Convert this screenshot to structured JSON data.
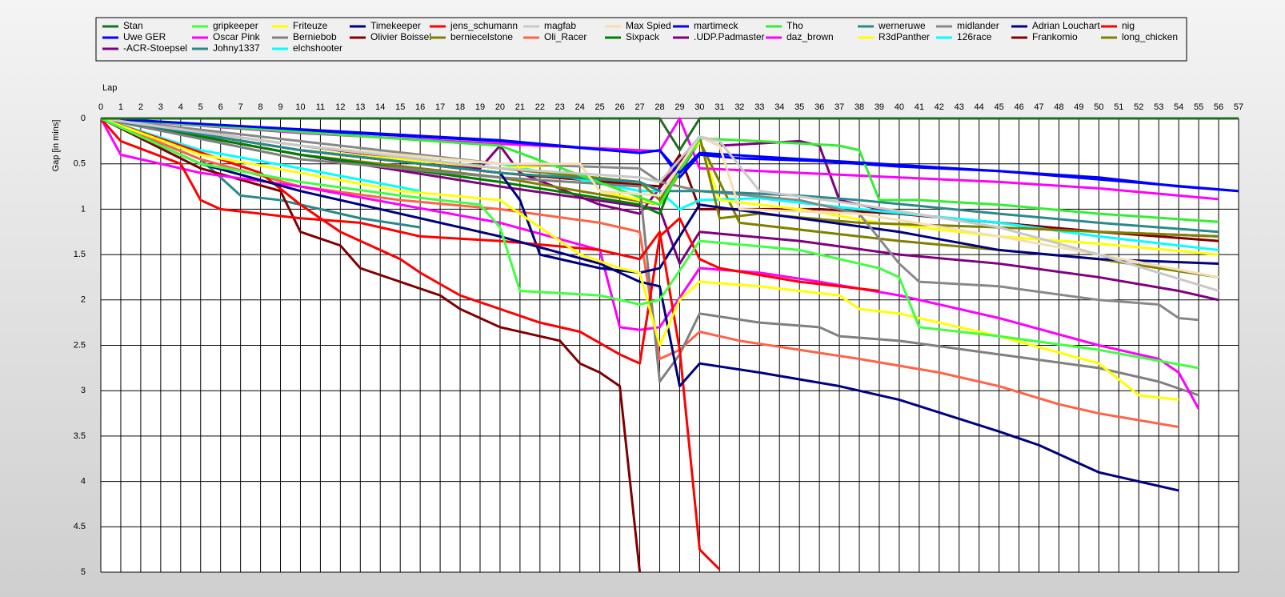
{
  "chart_data": {
    "type": "line",
    "x_label": "Lap",
    "y_label": "Gap [in mins]",
    "invert_y": true,
    "grid": true,
    "xlim": [
      0,
      57
    ],
    "xticks": [
      0,
      1,
      2,
      3,
      4,
      5,
      6,
      7,
      8,
      9,
      10,
      11,
      12,
      13,
      14,
      15,
      16,
      17,
      18,
      19,
      20,
      21,
      22,
      23,
      24,
      25,
      26,
      27,
      28,
      29,
      30,
      31,
      32,
      33,
      34,
      35,
      36,
      37,
      38,
      39,
      40,
      41,
      42,
      43,
      44,
      45,
      46,
      47,
      48,
      49,
      50,
      51,
      52,
      53,
      54,
      55,
      56,
      57
    ],
    "ylim": [
      0,
      5
    ],
    "yticks": [
      0,
      0.5,
      1,
      1.5,
      2,
      2.5,
      3,
      3.5,
      4,
      4.5,
      5
    ],
    "series": [
      {
        "name": "Stan",
        "color": "#1e6e1e",
        "x": [
          0,
          28,
          29,
          30,
          57
        ],
        "values": [
          0,
          0,
          0.35,
          0,
          0
        ]
      },
      {
        "name": "gripkeeper",
        "color": "#40ff40",
        "x": [
          0,
          5,
          10,
          15,
          19,
          20,
          21,
          25,
          27,
          28,
          30,
          35,
          39,
          40,
          41,
          45,
          50,
          55
        ],
        "values": [
          0,
          0.5,
          0.7,
          0.85,
          0.95,
          1.2,
          1.9,
          1.95,
          2.05,
          2.0,
          1.35,
          1.45,
          1.65,
          1.75,
          2.3,
          2.4,
          2.55,
          2.75
        ]
      },
      {
        "name": "Friteuze",
        "color": "#ffff00",
        "x": [
          0,
          5,
          10,
          15,
          20,
          24,
          26,
          27,
          28,
          29,
          30,
          33,
          37,
          38,
          40,
          45,
          50,
          52,
          54
        ],
        "values": [
          0,
          0.4,
          0.6,
          0.8,
          0.9,
          1.5,
          1.65,
          1.7,
          2.5,
          2.0,
          1.8,
          1.85,
          1.95,
          2.1,
          2.15,
          2.4,
          2.7,
          3.05,
          3.1
        ]
      },
      {
        "name": "Timekeeper",
        "color": "#000080",
        "x": [
          0,
          5,
          10,
          15,
          20,
          25,
          27,
          28,
          29,
          30,
          33,
          37,
          40,
          45,
          47,
          50,
          52,
          54
        ],
        "values": [
          0,
          0.5,
          0.8,
          1.05,
          1.3,
          1.6,
          1.8,
          1.85,
          2.95,
          2.7,
          2.8,
          2.95,
          3.1,
          3.45,
          3.6,
          3.9,
          4.0,
          4.1
        ]
      },
      {
        "name": "jens_schumann",
        "color": "#ff0000",
        "x": [
          0,
          1,
          4,
          5,
          6,
          8,
          10,
          13,
          15,
          16,
          20,
          25,
          27,
          28,
          29,
          30,
          31
        ],
        "values": [
          0,
          0.25,
          0.5,
          0.9,
          1.0,
          1.05,
          1.1,
          1.15,
          1.25,
          1.3,
          1.35,
          1.45,
          1.55,
          1.25,
          2.55,
          4.75,
          4.97
        ]
      },
      {
        "name": "magfab",
        "color": "#c8c8c8",
        "x": [
          0,
          10,
          20,
          27,
          28,
          30,
          31,
          33,
          38,
          45,
          50,
          56
        ],
        "values": [
          0,
          0.3,
          0.55,
          0.65,
          0.7,
          0.2,
          0.25,
          0.8,
          0.95,
          1.2,
          1.5,
          1.9
        ]
      },
      {
        "name": "Max Spied",
        "color": "#f5deb3",
        "x": [
          0,
          10,
          20,
          24,
          25,
          28,
          30,
          31,
          32,
          38,
          45,
          50,
          56
        ],
        "values": [
          0,
          0.3,
          0.5,
          0.5,
          0.8,
          0.85,
          0.2,
          0.3,
          1.0,
          1.05,
          1.3,
          1.5,
          1.75
        ]
      },
      {
        "name": "martimeck",
        "color": "#0000ff",
        "x": [
          0,
          10,
          20,
          27,
          28,
          29,
          30,
          36,
          45,
          57
        ],
        "values": [
          0,
          0.12,
          0.24,
          0.38,
          0.35,
          0.6,
          0.38,
          0.46,
          0.58,
          0.8
        ]
      },
      {
        "name": "Tho",
        "color": "#33ee33",
        "x": [
          0,
          10,
          20,
          28,
          30,
          33,
          37,
          38,
          39,
          41,
          45,
          50,
          56
        ],
        "values": [
          0,
          0.15,
          0.3,
          0.95,
          0.22,
          0.25,
          0.3,
          0.35,
          0.9,
          0.9,
          0.95,
          1.05,
          1.14
        ]
      },
      {
        "name": "werneruwe",
        "color": "#2a8a8a",
        "x": [
          0,
          10,
          20,
          27,
          28,
          30,
          35,
          38,
          45,
          50,
          56
        ],
        "values": [
          0,
          0.35,
          0.6,
          0.7,
          0.8,
          0.8,
          0.85,
          0.9,
          1.05,
          1.15,
          1.25
        ]
      },
      {
        "name": "midlander",
        "color": "#888888",
        "x": [
          0,
          10,
          20,
          27,
          28,
          30,
          35,
          38,
          40,
          41,
          45,
          50,
          53,
          54,
          55
        ],
        "values": [
          0,
          0.25,
          0.5,
          0.55,
          0.7,
          0.8,
          0.9,
          1.05,
          1.6,
          1.8,
          1.85,
          2.0,
          2.05,
          2.2,
          2.22
        ]
      },
      {
        "name": "Adrian Louchart",
        "color": "#000080",
        "x": [
          0,
          10,
          20,
          21,
          22,
          23,
          25,
          27,
          28,
          30,
          35,
          40,
          45,
          50,
          56
        ],
        "values": [
          0,
          0.35,
          0.6,
          0.9,
          1.5,
          1.55,
          1.65,
          1.7,
          1.65,
          0.95,
          1.1,
          1.25,
          1.45,
          1.55,
          1.6
        ]
      },
      {
        "name": "nig",
        "color": "#ff0000",
        "x": [
          0,
          4,
          8,
          10,
          12,
          15,
          16,
          18,
          20,
          22,
          24,
          26,
          27,
          28,
          29,
          30,
          31,
          35,
          39
        ],
        "values": [
          0,
          0.3,
          0.6,
          0.95,
          1.25,
          1.55,
          1.7,
          1.95,
          2.1,
          2.25,
          2.35,
          2.6,
          2.7,
          1.3,
          1.1,
          1.55,
          1.65,
          1.8,
          1.9
        ]
      },
      {
        "name": "Uwe GER",
        "color": "#0000ff",
        "x": [
          0,
          10,
          20,
          27,
          28,
          29,
          30,
          32,
          36,
          40,
          45,
          50,
          54,
          57
        ],
        "values": [
          0,
          0.13,
          0.25,
          0.38,
          0.35,
          0.65,
          0.4,
          0.44,
          0.47,
          0.53,
          0.58,
          0.65,
          0.75,
          0.8
        ]
      },
      {
        "name": "Oscar Pink",
        "color": "#ff00ff",
        "x": [
          0,
          1,
          5,
          10,
          15,
          20,
          25,
          26,
          27,
          28,
          30,
          33,
          36,
          40,
          45,
          50,
          53,
          54,
          55
        ],
        "values": [
          0,
          0.4,
          0.6,
          0.75,
          0.95,
          1.15,
          1.45,
          2.3,
          2.33,
          2.3,
          1.65,
          1.7,
          1.8,
          1.95,
          2.2,
          2.5,
          2.65,
          2.8,
          3.2
        ]
      },
      {
        "name": "Berniebob",
        "color": "#808080",
        "x": [
          0,
          10,
          20,
          27,
          28,
          29,
          30,
          33,
          36,
          37,
          40,
          45,
          50,
          53,
          55
        ],
        "values": [
          0,
          0.45,
          0.65,
          0.75,
          2.9,
          2.6,
          2.15,
          2.25,
          2.3,
          2.4,
          2.45,
          2.6,
          2.75,
          2.9,
          3.05
        ]
      },
      {
        "name": "Olivier Boissel",
        "color": "#800000",
        "x": [
          0,
          5,
          9,
          10,
          12,
          13,
          15,
          17,
          18,
          20,
          23,
          24,
          25,
          26,
          27
        ],
        "values": [
          0,
          0.55,
          0.8,
          1.25,
          1.4,
          1.65,
          1.8,
          1.95,
          2.1,
          2.3,
          2.45,
          2.7,
          2.8,
          2.95,
          5
        ]
      },
      {
        "name": "berniecelstone",
        "color": "#808000",
        "x": [
          0,
          10,
          20,
          27,
          28,
          30,
          31,
          33,
          38,
          45,
          50,
          56
        ],
        "values": [
          0,
          0.3,
          0.55,
          0.7,
          0.9,
          0.2,
          1.1,
          1.05,
          1.15,
          1.2,
          1.25,
          1.3
        ]
      },
      {
        "name": "Oli_Racer",
        "color": "#ff6347",
        "x": [
          0,
          5,
          10,
          15,
          20,
          25,
          27,
          28,
          29,
          30,
          32,
          35,
          38,
          42,
          45,
          48,
          50,
          54
        ],
        "values": [
          0,
          0.45,
          0.75,
          0.9,
          1.0,
          1.15,
          1.25,
          2.65,
          2.55,
          2.35,
          2.45,
          2.55,
          2.65,
          2.8,
          2.95,
          3.15,
          3.25,
          3.4
        ]
      },
      {
        "name": "Sixpack",
        "color": "#008000",
        "x": [
          0,
          10,
          20,
          27,
          28,
          29
        ],
        "values": [
          0,
          0.4,
          0.7,
          0.95,
          1.05,
          0.5
        ]
      },
      {
        "name": ".UDP.Padmaster",
        "color": "#800080",
        "x": [
          0,
          10,
          20,
          28,
          29,
          30,
          35,
          40,
          45,
          50,
          54,
          56
        ],
        "values": [
          0,
          0.4,
          0.75,
          1.0,
          1.6,
          1.25,
          1.35,
          1.5,
          1.6,
          1.75,
          1.9,
          2.0
        ]
      },
      {
        "name": "daz_brown",
        "color": "#ff00ff",
        "x": [
          0,
          10,
          20,
          28,
          29,
          30,
          35,
          40,
          45,
          50,
          56
        ],
        "values": [
          0,
          0.16,
          0.28,
          0.36,
          0,
          0.55,
          0.6,
          0.65,
          0.7,
          0.77,
          0.89
        ]
      },
      {
        "name": "R3dPanther",
        "color": "#ffff00",
        "x": [
          0,
          10,
          20,
          24,
          25,
          28,
          29,
          30,
          31,
          35,
          39,
          45,
          50,
          56
        ],
        "values": [
          0,
          0.35,
          0.55,
          0.5,
          0.8,
          0.95,
          0.55,
          0.25,
          0.9,
          1.0,
          1.15,
          1.3,
          1.38,
          1.5
        ]
      },
      {
        "name": "126race",
        "color": "#00ffff",
        "x": [
          0,
          10,
          20,
          27,
          28,
          29,
          30,
          33,
          38,
          45,
          50,
          56
        ],
        "values": [
          0,
          0.3,
          0.5,
          0.8,
          0.8,
          1.0,
          0.9,
          0.88,
          1.0,
          1.15,
          1.3,
          1.45
        ]
      },
      {
        "name": "Frankomio",
        "color": "#800000",
        "x": [
          0,
          10,
          20,
          28,
          29,
          30,
          36,
          40,
          45,
          50,
          56
        ],
        "values": [
          0,
          0.35,
          0.6,
          0.75,
          0.4,
          1.0,
          1.0,
          1.05,
          1.15,
          1.25,
          1.35
        ]
      },
      {
        "name": "long_chicken",
        "color": "#808000",
        "x": [
          0,
          10,
          20,
          28,
          30,
          32,
          36,
          40,
          45,
          50,
          56
        ],
        "values": [
          0,
          0.4,
          0.65,
          0.95,
          0.25,
          1.15,
          1.25,
          1.35,
          1.45,
          1.55,
          1.75
        ]
      },
      {
        "name": "-ACR-Stoepsel",
        "color": "#800080",
        "x": [
          0,
          10,
          19,
          20,
          21,
          25,
          27,
          30,
          31,
          35,
          36,
          37,
          40,
          45,
          50,
          56
        ],
        "values": [
          0,
          0.3,
          0.55,
          0.3,
          0.6,
          0.95,
          1.05,
          0.2,
          0.3,
          0.25,
          0.3,
          0.9,
          1.05,
          1.15,
          1.25,
          1.3
        ]
      },
      {
        "name": "Johny1337",
        "color": "#2a8a8a",
        "x": [
          0,
          5,
          7,
          9,
          11,
          13,
          16
        ],
        "values": [
          0,
          0.45,
          0.85,
          0.9,
          1.0,
          1.1,
          1.2
        ]
      },
      {
        "name": "elchshooter",
        "color": "#00ffff",
        "x": [
          0,
          5,
          10,
          16
        ],
        "values": [
          0,
          0.35,
          0.55,
          0.8
        ]
      }
    ]
  }
}
